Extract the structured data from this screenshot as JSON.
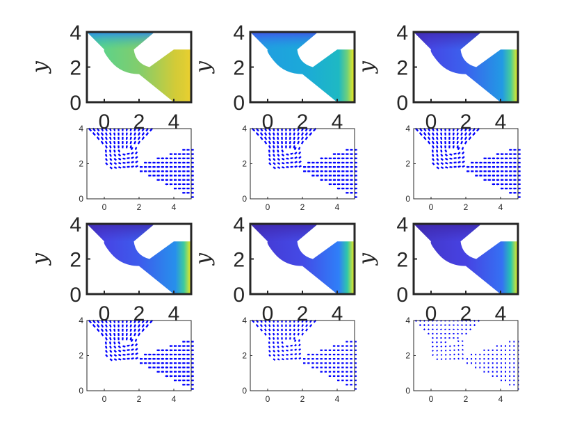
{
  "figure": {
    "background": "#ffffff",
    "colormap": [
      "#3e26a8",
      "#4743e4",
      "#2f7ff8",
      "#1ba9d9",
      "#20c3b4",
      "#5dd28a",
      "#b9c640",
      "#f9d32a",
      "#f9fb0e"
    ]
  },
  "chart_data": [
    {
      "type": "heatmap",
      "panel": "field-1",
      "ylabel": "y",
      "xlim": [
        -1,
        5
      ],
      "ylim": [
        0,
        4
      ],
      "xticks": [
        "0",
        "2",
        "4"
      ],
      "yticks": [
        "0",
        "2",
        "4"
      ],
      "field_range": [
        0.55,
        0.8
      ],
      "right_peak": 0.85
    },
    {
      "type": "heatmap",
      "panel": "field-2",
      "ylabel": "y",
      "xlim": [
        -1,
        5
      ],
      "ylim": [
        0,
        4
      ],
      "xticks": [
        "0",
        "2",
        "4"
      ],
      "yticks": [
        "0",
        "2",
        "4"
      ],
      "field_range": [
        0.3,
        0.45
      ],
      "right_peak": 0.95
    },
    {
      "type": "heatmap",
      "panel": "field-3",
      "ylabel": "y",
      "xlim": [
        -1,
        5
      ],
      "ylim": [
        0,
        4
      ],
      "xticks": [
        "0",
        "2",
        "4"
      ],
      "yticks": [
        "0",
        "2",
        "4"
      ],
      "field_range": [
        0.05,
        0.33
      ],
      "right_peak": 0.95
    },
    {
      "type": "scatter",
      "panel": "vectors-1",
      "xlim": [
        -1,
        5
      ],
      "ylim": [
        0,
        4
      ],
      "xticks": [
        "0",
        "2",
        "4"
      ],
      "yticks": [
        "0",
        "2",
        "4"
      ],
      "arrow_scale": 1.0,
      "color": "#0000ff"
    },
    {
      "type": "scatter",
      "panel": "vectors-2",
      "xlim": [
        -1,
        5
      ],
      "ylim": [
        0,
        4
      ],
      "xticks": [
        "0",
        "2",
        "4"
      ],
      "yticks": [
        "0",
        "2",
        "4"
      ],
      "arrow_scale": 1.0,
      "color": "#0000ff"
    },
    {
      "type": "scatter",
      "panel": "vectors-3",
      "xlim": [
        -1,
        5
      ],
      "ylim": [
        0,
        4
      ],
      "xticks": [
        "0",
        "2",
        "4"
      ],
      "yticks": [
        "0",
        "2",
        "4"
      ],
      "arrow_scale": 1.0,
      "color": "#0000ff"
    },
    {
      "type": "heatmap",
      "panel": "field-4",
      "ylabel": "y",
      "xlim": [
        -1,
        5
      ],
      "ylim": [
        0,
        4
      ],
      "xticks": [
        "0",
        "2",
        "4"
      ],
      "yticks": [
        "0",
        "2",
        "4"
      ],
      "field_range": [
        0.05,
        0.3
      ],
      "right_peak": 0.95
    },
    {
      "type": "heatmap",
      "panel": "field-5",
      "ylabel": "y",
      "xlim": [
        -1,
        5
      ],
      "ylim": [
        0,
        4
      ],
      "xticks": [
        "0",
        "2",
        "4"
      ],
      "yticks": [
        "0",
        "2",
        "4"
      ],
      "field_range": [
        0.03,
        0.25
      ],
      "right_peak": 0.95
    },
    {
      "type": "heatmap",
      "panel": "field-6",
      "ylabel": "y",
      "xlim": [
        -1,
        5
      ],
      "ylim": [
        0,
        4
      ],
      "xticks": [
        "0",
        "2",
        "4"
      ],
      "yticks": [
        "0",
        "2",
        "4"
      ],
      "field_range": [
        0.02,
        0.22
      ],
      "right_peak": 0.95
    },
    {
      "type": "scatter",
      "panel": "vectors-4",
      "xlim": [
        -1,
        5
      ],
      "ylim": [
        0,
        4
      ],
      "xticks": [
        "0",
        "2",
        "4"
      ],
      "yticks": [
        "0",
        "2",
        "4"
      ],
      "arrow_scale": 1.0,
      "color": "#0000ff"
    },
    {
      "type": "scatter",
      "panel": "vectors-5",
      "xlim": [
        -1,
        5
      ],
      "ylim": [
        0,
        4
      ],
      "xticks": [
        "0",
        "2",
        "4"
      ],
      "yticks": [
        "0",
        "2",
        "4"
      ],
      "arrow_scale": 0.8,
      "color": "#0000ff"
    },
    {
      "type": "scatter",
      "panel": "vectors-6",
      "xlim": [
        -1,
        5
      ],
      "ylim": [
        0,
        4
      ],
      "xticks": [
        "0",
        "2",
        "4"
      ],
      "yticks": [
        "0",
        "2",
        "4"
      ],
      "arrow_scale": 0.45,
      "color": "#0000ff"
    }
  ]
}
